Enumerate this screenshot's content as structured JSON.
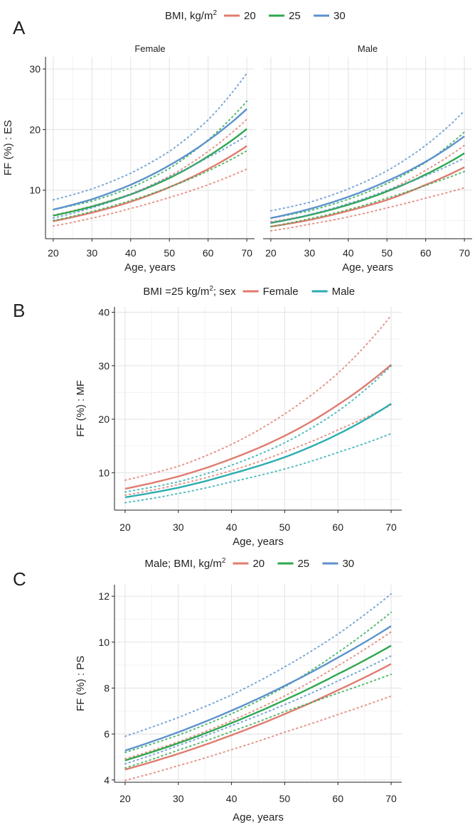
{
  "chart_data": [
    {
      "id": "A",
      "type": "line",
      "panel_label": "A",
      "legend_title": "BMI, kg/m²",
      "legend_title_text": "BMI, kg/m",
      "legend_title_sup": "2",
      "legend_position": "top",
      "series_keys": [
        "20",
        "25",
        "30"
      ],
      "colors": {
        "20": "#e07b6e",
        "25": "#2ea84f",
        "30": "#5b92cc"
      },
      "xlabel": "Age, years",
      "ylabel": "FF (%) : ES",
      "xlim": [
        18,
        72
      ],
      "ylim": [
        2,
        32
      ],
      "xticks": [
        20,
        30,
        40,
        50,
        60,
        70
      ],
      "yticks": [
        10,
        20,
        30
      ],
      "facets": [
        {
          "title": "Female",
          "series": [
            {
              "name": "20",
              "x": [
                20,
                30,
                40,
                50,
                60,
                70
              ],
              "fit": [
                4.9,
                6.3,
                8.1,
                10.5,
                13.5,
                17.3
              ],
              "lower": [
                4.1,
                5.4,
                7.0,
                8.8,
                10.9,
                13.5
              ],
              "upper": [
                5.9,
                7.4,
                9.4,
                12.3,
                16.4,
                21.7
              ]
            },
            {
              "name": "25",
              "x": [
                20,
                30,
                40,
                50,
                60,
                70
              ],
              "fit": [
                5.8,
                7.3,
                9.3,
                12.0,
                15.6,
                20.1
              ],
              "lower": [
                5.0,
                6.5,
                8.3,
                10.5,
                13.2,
                16.5
              ],
              "upper": [
                6.8,
                8.2,
                10.4,
                13.6,
                18.3,
                24.7
              ]
            },
            {
              "name": "30",
              "x": [
                20,
                30,
                40,
                50,
                60,
                70
              ],
              "fit": [
                6.8,
                8.5,
                10.9,
                14.1,
                18.2,
                23.4
              ],
              "lower": [
                5.4,
                7.1,
                9.3,
                12.2,
                15.4,
                19.0
              ],
              "upper": [
                8.4,
                10.2,
                12.8,
                16.4,
                21.6,
                29.3
              ]
            }
          ]
        },
        {
          "title": "Male",
          "series": [
            {
              "name": "20",
              "x": [
                20,
                30,
                40,
                50,
                60,
                70
              ],
              "fit": [
                4.0,
                5.1,
                6.6,
                8.4,
                10.9,
                13.8
              ],
              "lower": [
                3.3,
                4.4,
                5.6,
                7.1,
                8.7,
                10.4
              ],
              "upper": [
                4.8,
                5.9,
                7.6,
                9.9,
                13.3,
                17.4
              ]
            },
            {
              "name": "25",
              "x": [
                20,
                30,
                40,
                50,
                60,
                70
              ],
              "fit": [
                4.6,
                5.9,
                7.6,
                9.8,
                12.6,
                16.1
              ],
              "lower": [
                4.0,
                5.3,
                6.8,
                8.7,
                10.8,
                13.1
              ],
              "upper": [
                5.4,
                6.6,
                8.5,
                11.1,
                14.6,
                19.6
              ]
            },
            {
              "name": "30",
              "x": [
                20,
                30,
                40,
                50,
                60,
                70
              ],
              "fit": [
                5.4,
                6.9,
                8.9,
                11.5,
                14.7,
                18.9
              ],
              "lower": [
                4.6,
                6.0,
                7.8,
                10.0,
                12.4,
                15.3
              ],
              "upper": [
                6.6,
                8.0,
                10.2,
                13.2,
                17.4,
                23.1
              ]
            }
          ]
        }
      ]
    },
    {
      "id": "B",
      "type": "line",
      "panel_label": "B",
      "legend_title": "BMI =25 kg/m²; sex",
      "legend_title_text": "BMI =25 kg/m",
      "legend_title_sup": "2",
      "legend_title_after": "; sex",
      "legend_position": "top",
      "series_keys": [
        "Female",
        "Male"
      ],
      "colors": {
        "Female": "#e07b6e",
        "Male": "#2aadb0"
      },
      "xlabel": "Age, years",
      "ylabel": "FF (%) : MF",
      "xlim": [
        18,
        72
      ],
      "ylim": [
        3,
        41
      ],
      "xticks": [
        20,
        30,
        40,
        50,
        60,
        70
      ],
      "yticks": [
        10,
        20,
        30,
        40
      ],
      "series": [
        {
          "name": "Female",
          "x": [
            20,
            30,
            40,
            50,
            60,
            70
          ],
          "fit": [
            7.0,
            9.3,
            12.6,
            16.9,
            22.7,
            30.2
          ],
          "lower": [
            5.8,
            7.8,
            10.4,
            13.9,
            18.0,
            22.7
          ],
          "upper": [
            8.6,
            11.2,
            15.3,
            21.0,
            28.6,
            39.4
          ]
        },
        {
          "name": "Male",
          "x": [
            20,
            30,
            40,
            50,
            60,
            70
          ],
          "fit": [
            5.4,
            7.2,
            9.8,
            12.9,
            17.2,
            22.9
          ],
          "lower": [
            4.4,
            6.1,
            8.3,
            10.7,
            13.8,
            17.3
          ],
          "upper": [
            6.4,
            8.3,
            11.4,
            15.6,
            21.5,
            30.0
          ]
        }
      ]
    },
    {
      "id": "C",
      "type": "line",
      "panel_label": "C",
      "legend_title": "Male; BMI, kg/m²",
      "legend_title_text": "Male; BMI, kg/m",
      "legend_title_sup": "2",
      "legend_position": "top",
      "series_keys": [
        "20",
        "25",
        "30"
      ],
      "colors": {
        "20": "#e07b6e",
        "25": "#2ea84f",
        "30": "#5b92cc"
      },
      "xlabel": "Age, years",
      "ylabel": "FF (%) : PS",
      "xlim": [
        18,
        72
      ],
      "ylim": [
        3.9,
        12.5
      ],
      "xticks": [
        20,
        30,
        40,
        50,
        60,
        70
      ],
      "yticks": [
        4,
        6,
        8,
        10,
        12
      ],
      "series": [
        {
          "name": "20",
          "x": [
            20,
            30,
            40,
            50,
            60,
            70
          ],
          "fit": [
            4.45,
            5.14,
            5.95,
            6.87,
            7.91,
            9.05
          ],
          "lower": [
            3.98,
            4.62,
            5.32,
            6.08,
            6.85,
            7.65
          ],
          "upper": [
            4.92,
            5.66,
            6.58,
            7.66,
            8.97,
            10.45
          ]
        },
        {
          "name": "25",
          "x": [
            20,
            30,
            40,
            50,
            60,
            70
          ],
          "fit": [
            4.85,
            5.6,
            6.48,
            7.48,
            8.61,
            9.85
          ],
          "lower": [
            4.52,
            5.3,
            6.11,
            6.98,
            7.78,
            8.6
          ],
          "upper": [
            5.2,
            5.95,
            6.88,
            8.05,
            9.55,
            11.3
          ]
        },
        {
          "name": "30",
          "x": [
            20,
            30,
            40,
            50,
            60,
            70
          ],
          "fit": [
            5.28,
            6.08,
            7.02,
            8.1,
            9.33,
            10.7
          ],
          "lower": [
            4.7,
            5.5,
            6.36,
            7.28,
            8.31,
            9.4
          ],
          "upper": [
            5.9,
            6.72,
            7.7,
            8.92,
            10.35,
            12.1
          ]
        }
      ]
    }
  ]
}
